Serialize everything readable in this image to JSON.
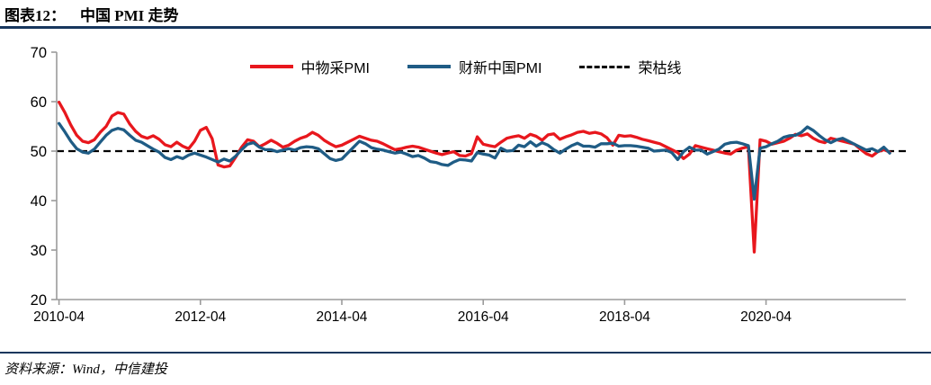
{
  "header": {
    "label": "图表12：",
    "title": "中国 PMI 走势"
  },
  "footer": {
    "source": "资料来源：Wind，中信建投"
  },
  "colors": {
    "official_line": "#e8171d",
    "caixin_line": "#1f5c85",
    "breakeven_line": "#000000",
    "header_rule": "#17365d",
    "axis": "#9b9b9b",
    "text": "#000000"
  },
  "chart_data": {
    "type": "line",
    "title": "中国 PMI 走势",
    "x_start": "2010-04",
    "x_end": "2022-01",
    "x_interval": "monthly",
    "x_tick_labels": [
      "2010-04",
      "2012-04",
      "2014-04",
      "2016-04",
      "2018-04",
      "2020-04"
    ],
    "x_tick_indices": [
      0,
      24,
      48,
      72,
      96,
      120
    ],
    "y_ticks": [
      20,
      30,
      40,
      50,
      60,
      70
    ],
    "ylim": [
      20,
      70
    ],
    "grid": "off",
    "legend_position": "top-center",
    "breakeven_value": 50,
    "legend": [
      {
        "name": "中物采PMI",
        "color": "#e8171d",
        "style": "solid"
      },
      {
        "name": "财新中国PMI",
        "color": "#1f5c85",
        "style": "solid"
      },
      {
        "name": "荣枯线",
        "color": "#000000",
        "style": "dashed"
      }
    ],
    "series": [
      {
        "name": "中物采PMI",
        "color": "#e8171d",
        "values": [
          59.9,
          57.8,
          55.3,
          53.2,
          52.0,
          51.7,
          52.3,
          53.8,
          55.0,
          57.1,
          57.8,
          57.5,
          55.5,
          54.0,
          53.0,
          52.6,
          53.1,
          52.4,
          51.3,
          50.9,
          51.8,
          51.0,
          50.5,
          52.0,
          54.2,
          54.8,
          52.5,
          47.2,
          46.8,
          47.0,
          48.8,
          50.8,
          52.3,
          52.0,
          50.9,
          51.5,
          52.2,
          51.6,
          50.8,
          51.2,
          52.0,
          52.6,
          53.0,
          53.8,
          53.2,
          52.2,
          51.5,
          50.9,
          51.2,
          51.8,
          52.4,
          53.0,
          52.6,
          52.2,
          52.0,
          51.5,
          50.9,
          50.3,
          50.5,
          50.8,
          51.0,
          50.8,
          50.4,
          50.0,
          49.6,
          49.3,
          49.6,
          49.9,
          49.1,
          49.0,
          49.5,
          52.9,
          51.4,
          51.1,
          50.9,
          51.8,
          52.6,
          52.9,
          53.1,
          52.6,
          53.4,
          53.0,
          52.2,
          53.3,
          53.5,
          52.4,
          52.9,
          53.3,
          53.8,
          54.0,
          53.6,
          53.8,
          53.5,
          52.7,
          51.2,
          53.2,
          53.0,
          53.1,
          52.8,
          52.4,
          52.1,
          51.8,
          51.5,
          50.9,
          50.3,
          49.7,
          48.5,
          49.4,
          51.1,
          50.8,
          50.5,
          50.2,
          49.9,
          49.6,
          49.4,
          50.2,
          50.6,
          50.9,
          29.6,
          52.3,
          52.0,
          51.4,
          51.7,
          52.0,
          52.6,
          53.4,
          53.1,
          53.5,
          52.6,
          52.0,
          51.7,
          52.6,
          52.3,
          52.0,
          51.7,
          51.4,
          50.4,
          49.5,
          49.0,
          49.9,
          50.3,
          49.8
        ]
      },
      {
        "name": "财新中国PMI",
        "color": "#1f5c85",
        "values": [
          55.6,
          53.9,
          52.0,
          50.5,
          49.8,
          49.6,
          50.4,
          51.8,
          53.2,
          54.2,
          54.6,
          54.3,
          53.2,
          52.2,
          51.8,
          51.1,
          50.4,
          49.8,
          48.7,
          48.3,
          48.9,
          48.5,
          49.2,
          49.6,
          49.2,
          48.8,
          48.3,
          47.8,
          48.4,
          48.0,
          49.0,
          50.3,
          51.4,
          51.7,
          50.8,
          50.3,
          50.3,
          49.9,
          50.2,
          50.5,
          50.2,
          50.7,
          50.9,
          50.8,
          50.5,
          49.5,
          48.5,
          48.1,
          48.4,
          49.6,
          50.8,
          52.0,
          51.5,
          50.7,
          50.4,
          50.2,
          49.9,
          49.6,
          49.8,
          49.4,
          48.9,
          49.1,
          48.6,
          47.9,
          47.7,
          47.3,
          47.1,
          47.8,
          48.3,
          48.2,
          48.0,
          49.7,
          49.4,
          49.2,
          48.6,
          50.6,
          50.0,
          50.1,
          51.2,
          50.9,
          51.9,
          51.0,
          51.7,
          51.2,
          50.3,
          49.6,
          50.4,
          51.1,
          51.6,
          51.0,
          51.0,
          50.8,
          51.5,
          51.5,
          51.6,
          51.0,
          51.1,
          51.1,
          51.0,
          50.8,
          50.6,
          50.0,
          50.1,
          50.2,
          49.7,
          48.3,
          49.9,
          50.8,
          50.2,
          50.2,
          49.4,
          49.9,
          50.4,
          51.4,
          51.7,
          51.8,
          51.5,
          51.1,
          40.3,
          50.6,
          50.9,
          51.5,
          52.0,
          52.8,
          53.1,
          53.2,
          53.8,
          54.9,
          54.2,
          53.2,
          52.3,
          51.7,
          52.3,
          52.6,
          52.0,
          51.4,
          50.8,
          50.2,
          50.5,
          49.9,
          50.8,
          49.6
        ]
      }
    ]
  }
}
